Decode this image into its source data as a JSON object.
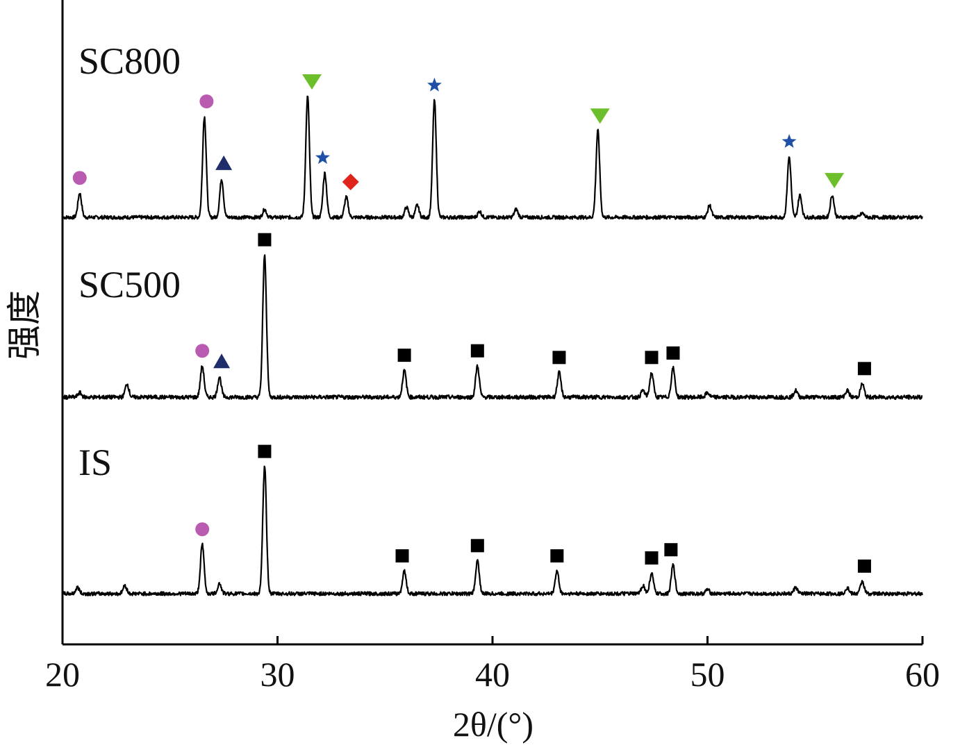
{
  "chart_data": {
    "type": "line",
    "xlabel": "2θ/(°)",
    "ylabel": "强度",
    "xlim": [
      20,
      60
    ],
    "xticks": [
      20,
      30,
      40,
      50,
      60
    ],
    "grid": false,
    "legend": "none",
    "series": [
      {
        "name": "SC800",
        "peaks": [
          {
            "x": 20.8,
            "h": 0.12
          },
          {
            "x": 26.6,
            "h": 0.5
          },
          {
            "x": 27.4,
            "h": 0.19
          },
          {
            "x": 29.4,
            "h": 0.04
          },
          {
            "x": 31.4,
            "h": 0.6
          },
          {
            "x": 32.2,
            "h": 0.22
          },
          {
            "x": 33.2,
            "h": 0.1
          },
          {
            "x": 36.0,
            "h": 0.05
          },
          {
            "x": 36.5,
            "h": 0.06
          },
          {
            "x": 37.3,
            "h": 0.58
          },
          {
            "x": 39.4,
            "h": 0.03
          },
          {
            "x": 41.1,
            "h": 0.04
          },
          {
            "x": 44.9,
            "h": 0.43
          },
          {
            "x": 50.1,
            "h": 0.06
          },
          {
            "x": 53.8,
            "h": 0.3
          },
          {
            "x": 54.3,
            "h": 0.11
          },
          {
            "x": 55.8,
            "h": 0.11
          },
          {
            "x": 57.2,
            "h": 0.02
          }
        ],
        "markers": [
          {
            "x": 20.8,
            "shape": "circle"
          },
          {
            "x": 26.7,
            "shape": "circle"
          },
          {
            "x": 27.5,
            "shape": "triangle-up"
          },
          {
            "x": 31.6,
            "shape": "triangle-down"
          },
          {
            "x": 32.1,
            "shape": "star"
          },
          {
            "x": 33.4,
            "shape": "diamond"
          },
          {
            "x": 37.3,
            "shape": "star"
          },
          {
            "x": 45.0,
            "shape": "triangle-down"
          },
          {
            "x": 53.8,
            "shape": "star"
          },
          {
            "x": 55.9,
            "shape": "triangle-down"
          }
        ]
      },
      {
        "name": "SC500",
        "peaks": [
          {
            "x": 20.8,
            "h": 0.02
          },
          {
            "x": 23.0,
            "h": 0.06
          },
          {
            "x": 26.5,
            "h": 0.14
          },
          {
            "x": 27.3,
            "h": 0.09
          },
          {
            "x": 29.4,
            "h": 0.64
          },
          {
            "x": 35.9,
            "h": 0.12
          },
          {
            "x": 39.3,
            "h": 0.14
          },
          {
            "x": 43.1,
            "h": 0.11
          },
          {
            "x": 47.0,
            "h": 0.03
          },
          {
            "x": 47.4,
            "h": 0.11
          },
          {
            "x": 48.4,
            "h": 0.13
          },
          {
            "x": 50.0,
            "h": 0.02
          },
          {
            "x": 54.1,
            "h": 0.03
          },
          {
            "x": 56.5,
            "h": 0.03
          },
          {
            "x": 57.2,
            "h": 0.06
          }
        ],
        "markers": [
          {
            "x": 26.5,
            "shape": "circle"
          },
          {
            "x": 27.4,
            "shape": "triangle-up"
          },
          {
            "x": 29.4,
            "shape": "square"
          },
          {
            "x": 35.9,
            "shape": "square"
          },
          {
            "x": 39.3,
            "shape": "square"
          },
          {
            "x": 43.1,
            "shape": "square"
          },
          {
            "x": 47.4,
            "shape": "square"
          },
          {
            "x": 48.4,
            "shape": "square"
          },
          {
            "x": 57.3,
            "shape": "square"
          }
        ]
      },
      {
        "name": "IS",
        "peaks": [
          {
            "x": 20.7,
            "h": 0.03
          },
          {
            "x": 22.9,
            "h": 0.04
          },
          {
            "x": 26.5,
            "h": 0.24
          },
          {
            "x": 27.3,
            "h": 0.05
          },
          {
            "x": 29.4,
            "h": 0.62
          },
          {
            "x": 35.9,
            "h": 0.11
          },
          {
            "x": 39.3,
            "h": 0.16
          },
          {
            "x": 43.0,
            "h": 0.11
          },
          {
            "x": 47.0,
            "h": 0.04
          },
          {
            "x": 47.4,
            "h": 0.1
          },
          {
            "x": 48.4,
            "h": 0.14
          },
          {
            "x": 50.0,
            "h": 0.02
          },
          {
            "x": 54.1,
            "h": 0.03
          },
          {
            "x": 56.5,
            "h": 0.03
          },
          {
            "x": 57.2,
            "h": 0.06
          }
        ],
        "markers": [
          {
            "x": 26.5,
            "shape": "circle"
          },
          {
            "x": 29.4,
            "shape": "square"
          },
          {
            "x": 35.8,
            "shape": "square"
          },
          {
            "x": 39.3,
            "shape": "square"
          },
          {
            "x": 43.0,
            "shape": "square"
          },
          {
            "x": 47.4,
            "shape": "square"
          },
          {
            "x": 48.3,
            "shape": "square"
          },
          {
            "x": 57.3,
            "shape": "square"
          }
        ]
      }
    ]
  },
  "marker_colors": {
    "circle": "#b95bb0",
    "triangle-up": "#1f2d6b",
    "triangle-down": "#6cbf2a",
    "star": "#1f4fa6",
    "diamond": "#e0231b",
    "square": "#000000"
  }
}
